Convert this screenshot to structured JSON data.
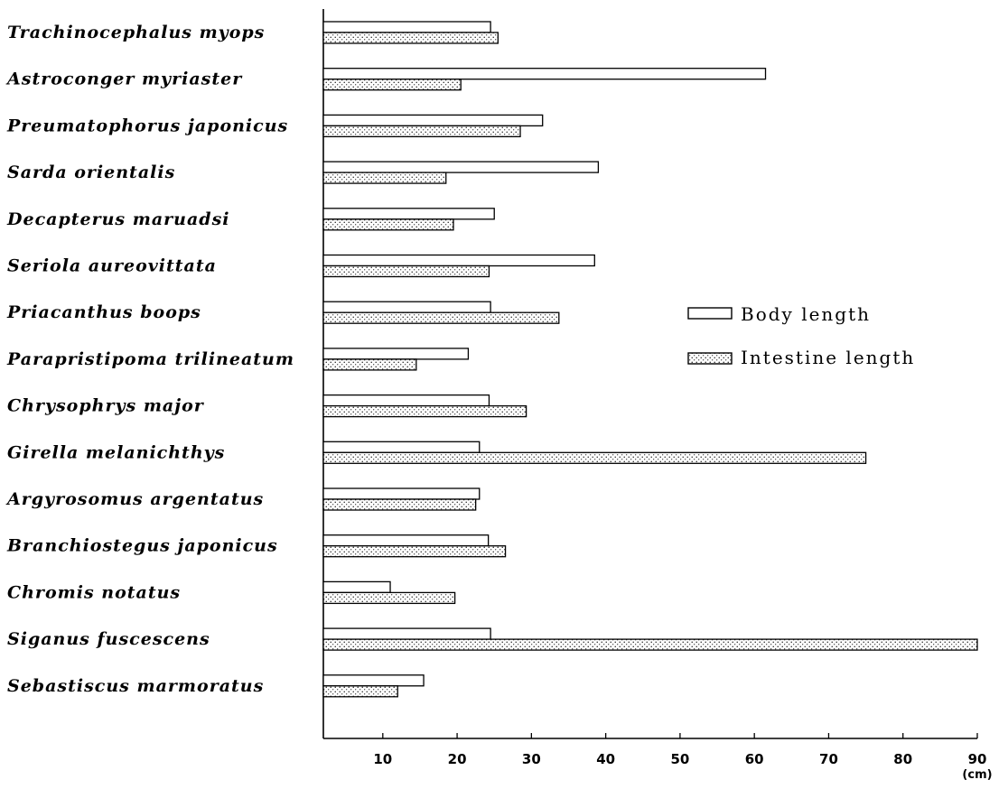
{
  "chart_data": {
    "type": "bar",
    "orientation": "horizontal",
    "categories": [
      "Trachinocephalus myops",
      "Astroconger myriaster",
      "Preumatophorus japonicus",
      "Sarda orientalis",
      "Decapterus maruadsi",
      "Seriola aureovittata",
      "Priacanthus boops",
      "Parapristipoma trilineatum",
      "Chrysophrys major",
      "Girella melanichthys",
      "Argyrosomus argentatus",
      "Branchiostegus japonicus",
      "Chromis notatus",
      "Siganus fuscescens",
      "Sebastiscus marmoratus"
    ],
    "series": [
      {
        "name": "Body length",
        "values": [
          24.5,
          61.5,
          31.5,
          39,
          25,
          38.5,
          24.5,
          21.5,
          24.3,
          23,
          23,
          24.2,
          11,
          24.5,
          15.5
        ]
      },
      {
        "name": "Intestine length",
        "values": [
          25.5,
          20.5,
          28.5,
          18.5,
          19.5,
          24.3,
          33.7,
          14.5,
          29.3,
          75,
          22.5,
          26.5,
          19.7,
          90,
          12
        ]
      }
    ],
    "x_ticks": [
      "10",
      "20",
      "30",
      "40",
      "50",
      "60",
      "70",
      "80",
      "90"
    ],
    "x_unit": "(cm)",
    "xlim": [
      2,
      90
    ],
    "legend_position": "right"
  }
}
